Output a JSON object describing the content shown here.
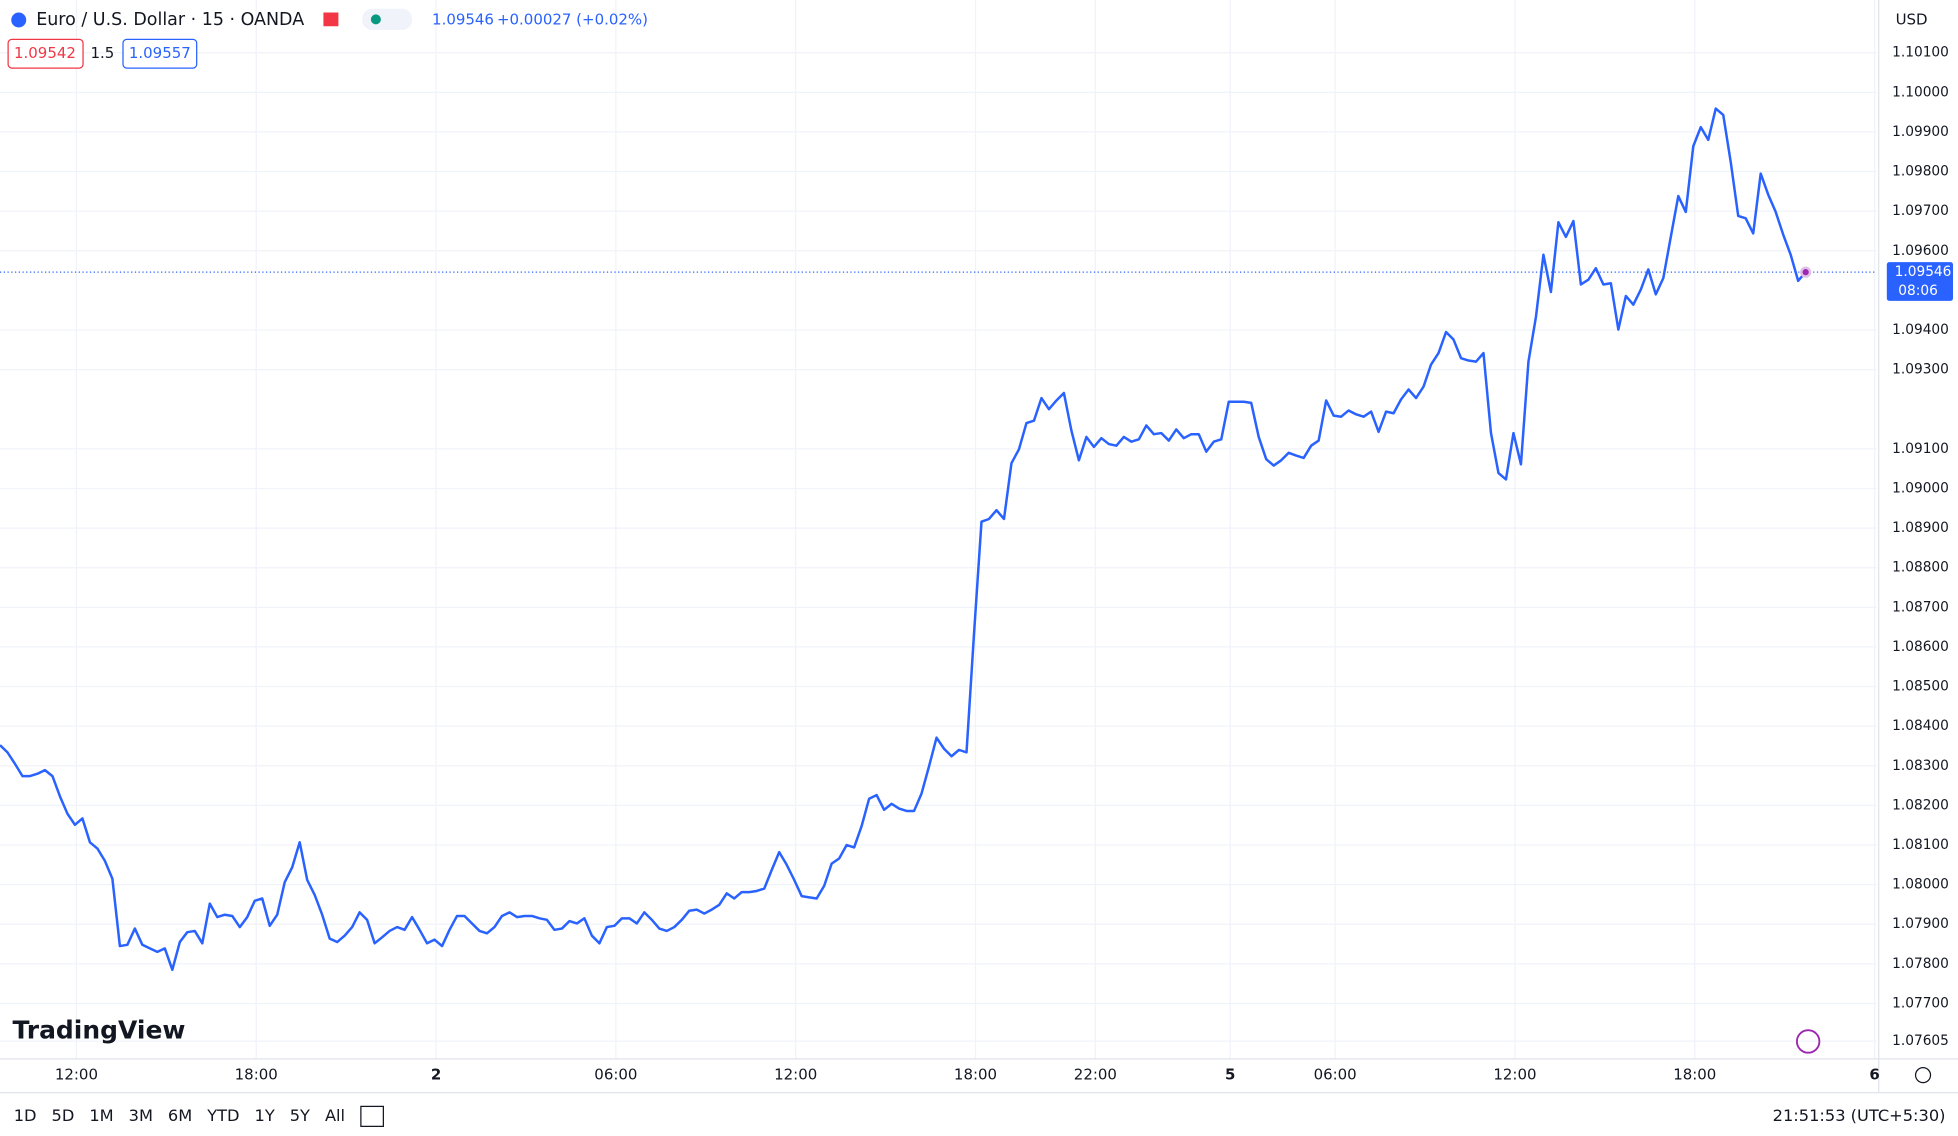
{
  "header": {
    "symbol": "Euro / U.S. Dollar · 15 · OANDA",
    "price": "1.09546",
    "change": "+0.00027 (+0.02%)",
    "bid": "1.09542",
    "spread": "1.5",
    "ask": "1.09557",
    "currency": "USD",
    "brand": "TradingView"
  },
  "toolbar": {
    "ranges": [
      "1D",
      "5D",
      "1M",
      "3M",
      "6M",
      "YTD",
      "1Y",
      "5Y",
      "All"
    ],
    "clock": "21:51:53 (UTC+5:30)"
  },
  "chart_data": {
    "type": "line",
    "series": [
      {
        "name": "EURUSD",
        "color": "#2962ff",
        "values": [
          1.08352,
          1.08334,
          1.08305,
          1.08274,
          1.08274,
          1.0828,
          1.08289,
          1.08274,
          1.08223,
          1.08179,
          1.08151,
          1.08167,
          1.08107,
          1.08091,
          1.0806,
          1.08015,
          1.07845,
          1.07848,
          1.07889,
          1.07848,
          1.07839,
          1.0783,
          1.07839,
          1.07785,
          1.07855,
          1.0788,
          1.07883,
          1.07852,
          1.07952,
          1.07918,
          1.07924,
          1.07921,
          1.07893,
          1.07918,
          1.07959,
          1.07965,
          1.07896,
          1.07924,
          1.08006,
          1.08044,
          1.08107,
          1.08012,
          1.07974,
          1.07924,
          1.07864,
          1.07855,
          1.07871,
          1.07893,
          1.0793,
          1.07911,
          1.07852,
          1.07867,
          1.07883,
          1.07893,
          1.07886,
          1.07918,
          1.07886,
          1.07852,
          1.07861,
          1.07845,
          1.07886,
          1.07921,
          1.07921,
          1.07902,
          1.07883,
          1.07877,
          1.07893,
          1.07921,
          1.0793,
          1.07918,
          1.07921,
          1.07921,
          1.07915,
          1.07911,
          1.07886,
          1.07889,
          1.07908,
          1.07902,
          1.07915,
          1.07871,
          1.07852,
          1.07893,
          1.07896,
          1.07915,
          1.07915,
          1.07902,
          1.0793,
          1.07911,
          1.07889,
          1.07883,
          1.07893,
          1.07911,
          1.07934,
          1.07937,
          1.07927,
          1.07937,
          1.07949,
          1.07978,
          1.07965,
          1.07981,
          1.07981,
          1.07984,
          1.0799,
          1.08037,
          1.08082,
          1.0805,
          1.08012,
          1.07971,
          1.07968,
          1.07965,
          1.07997,
          1.08053,
          1.08066,
          1.081,
          1.08094,
          1.08148,
          1.08217,
          1.08226,
          1.08189,
          1.08204,
          1.08192,
          1.08186,
          1.08186,
          1.0823,
          1.08299,
          1.08371,
          1.08343,
          1.08324,
          1.0834,
          1.08334,
          1.08633,
          1.08916,
          1.08923,
          1.08945,
          1.08923,
          1.09064,
          1.09099,
          1.09165,
          1.09171,
          1.09228,
          1.092,
          1.09222,
          1.09241,
          1.09146,
          1.09071,
          1.0913,
          1.09105,
          1.09127,
          1.09112,
          1.09108,
          1.0913,
          1.09118,
          1.09124,
          1.09159,
          1.09137,
          1.0914,
          1.09121,
          1.09149,
          1.09127,
          1.09137,
          1.09137,
          1.09093,
          1.09118,
          1.09124,
          1.09219,
          1.09219,
          1.09219,
          1.09216,
          1.0913,
          1.09074,
          1.09058,
          1.09071,
          1.0909,
          1.09083,
          1.09077,
          1.09108,
          1.09121,
          1.09222,
          1.09184,
          1.09181,
          1.09197,
          1.09187,
          1.09181,
          1.09194,
          1.09143,
          1.09194,
          1.0919,
          1.09225,
          1.0925,
          1.09228,
          1.09257,
          1.09313,
          1.09342,
          1.09395,
          1.09376,
          1.09329,
          1.09323,
          1.0932,
          1.09342,
          1.0914,
          1.09039,
          1.09023,
          1.0914,
          1.09061,
          1.0932,
          1.09433,
          1.0959,
          1.09496,
          1.09672,
          1.09635,
          1.09675,
          1.09515,
          1.09527,
          1.09556,
          1.09515,
          1.09518,
          1.09401,
          1.09486,
          1.09464,
          1.09502,
          1.09553,
          1.0949,
          1.09531,
          1.09635,
          1.09738,
          1.09698,
          1.09864,
          1.09912,
          1.0988,
          1.09959,
          1.09943,
          1.09824,
          1.09688,
          1.09682,
          1.09644,
          1.09795,
          1.09742,
          1.09698,
          1.09641,
          1.0959,
          1.09524,
          1.09546
        ]
      }
    ],
    "xlim": [
      0,
      250.5
    ],
    "xticks": [
      {
        "value": 10.2,
        "label": "12:00"
      },
      {
        "value": 34.2,
        "label": "18:00"
      },
      {
        "value": 58.2,
        "label": "2"
      },
      {
        "value": 82.2,
        "label": "06:00"
      },
      {
        "value": 106.2,
        "label": "12:00"
      },
      {
        "value": 130.2,
        "label": "18:00"
      },
      {
        "value": 146.2,
        "label": "22:00"
      },
      {
        "value": 164.2,
        "label": "5"
      },
      {
        "value": 178.2,
        "label": "06:00"
      },
      {
        "value": 202.2,
        "label": "12:00"
      },
      {
        "value": 226.2,
        "label": "18:00"
      },
      {
        "value": 250.2,
        "label": "6"
      }
    ],
    "ylim": [
      1.0756,
      1.10233
    ],
    "yticks": [
      1.07605,
      {
        "value": 1.077,
        "label": "1.07700"
      },
      {
        "value": 1.078,
        "label": "1.07800"
      },
      {
        "value": 1.079,
        "label": "1.07900"
      },
      {
        "value": 1.08,
        "label": "1.08000"
      },
      {
        "value": 1.081,
        "label": "1.08100"
      },
      {
        "value": 1.082,
        "label": "1.08200"
      },
      {
        "value": 1.083,
        "label": "1.08300"
      },
      {
        "value": 1.084,
        "label": "1.08400"
      },
      {
        "value": 1.085,
        "label": "1.08500"
      },
      {
        "value": 1.086,
        "label": "1.08600"
      },
      {
        "value": 1.087,
        "label": "1.08700"
      },
      {
        "value": 1.088,
        "label": "1.08800"
      },
      {
        "value": 1.089,
        "label": "1.08900"
      },
      {
        "value": 1.09,
        "label": "1.09000"
      },
      {
        "value": 1.091,
        "label": "1.09100"
      },
      {
        "value": 1.093,
        "label": "1.09300"
      },
      {
        "value": 1.094,
        "label": "1.09400"
      },
      {
        "value": 1.096,
        "label": "1.09600"
      },
      {
        "value": 1.097,
        "label": "1.09700"
      },
      {
        "value": 1.098,
        "label": "1.09800"
      },
      {
        "value": 1.099,
        "label": "1.09900"
      },
      {
        "value": 1.1,
        "label": "1.10000"
      },
      {
        "value": 1.101,
        "label": "1.10100"
      }
    ],
    "grid": true,
    "last_price": {
      "value": 1.09546,
      "label": "1.09546"
    },
    "countdown": "08:06"
  }
}
